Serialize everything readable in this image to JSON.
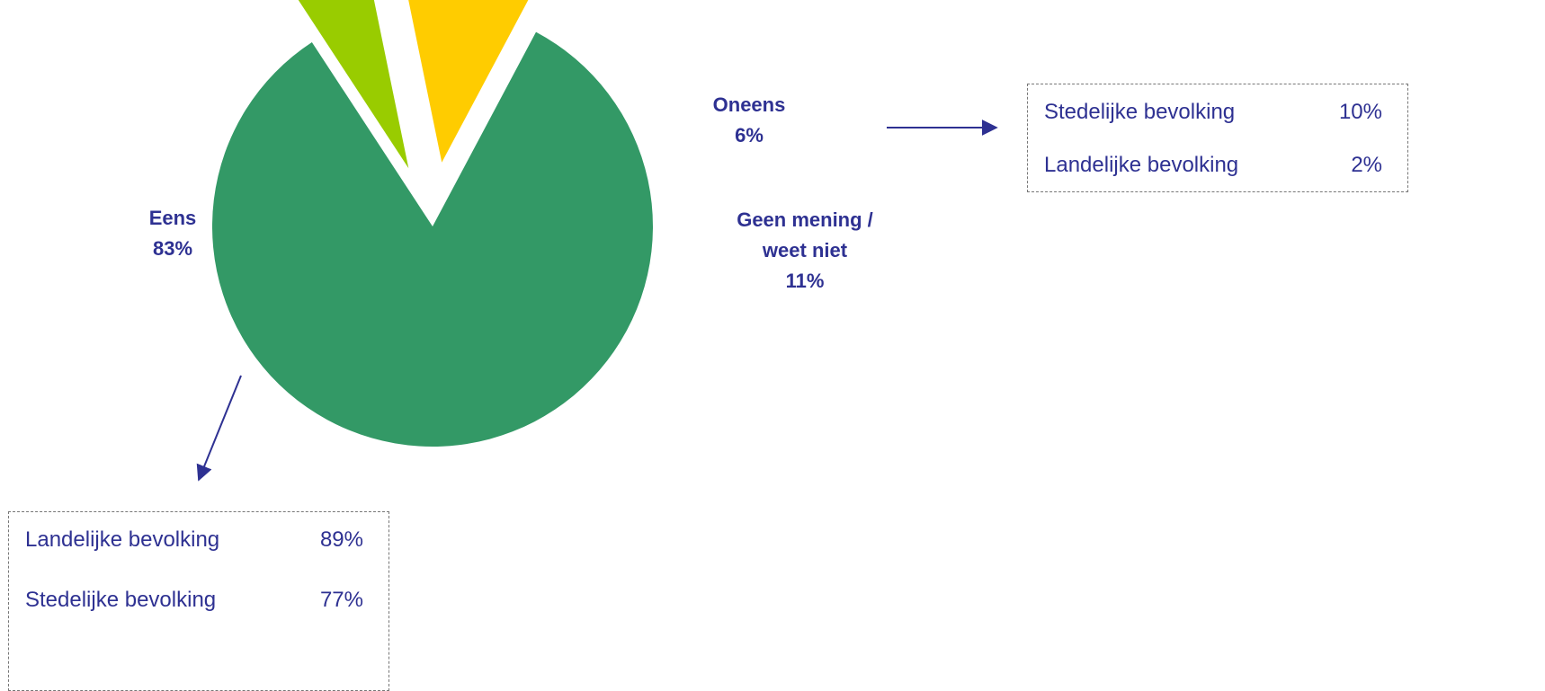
{
  "chart_data": {
    "type": "pie",
    "slices": [
      {
        "label": "Eens",
        "value": 83,
        "display": "83%",
        "color": "#339966"
      },
      {
        "label": "Oneens",
        "value": 6,
        "display": "6%",
        "color": "#99CC00"
      },
      {
        "label": "Geen mening / weet niet",
        "value": 11,
        "display": "11%",
        "color": "#FFCC00"
      }
    ],
    "label_color": "#2E3192",
    "breakdowns": [
      {
        "slice": "Oneens",
        "rows": [
          {
            "label": "Stedelijke bevolking",
            "value": "10%"
          },
          {
            "label": "Landelijke bevolking",
            "value": "2%"
          }
        ]
      },
      {
        "slice": "Eens",
        "rows": [
          {
            "label": "Landelijke bevolking",
            "value": "89%"
          },
          {
            "label": "Stedelijke bevolking",
            "value": "77%"
          }
        ]
      }
    ]
  },
  "labels": {
    "eens": {
      "name": "Eens",
      "pct": "83%"
    },
    "oneens": {
      "name": "Oneens",
      "pct": "6%"
    },
    "geen": {
      "line1": "Geen mening /",
      "line2": "weet niet",
      "pct": "11%"
    }
  }
}
